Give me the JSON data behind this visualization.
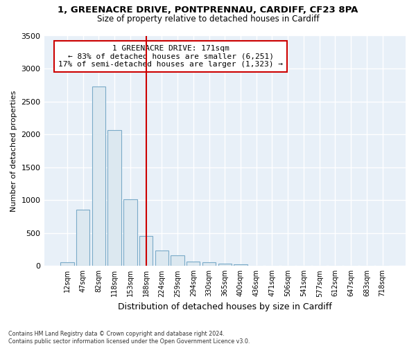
{
  "title1": "1, GREENACRE DRIVE, PONTPRENNAU, CARDIFF, CF23 8PA",
  "title2": "Size of property relative to detached houses in Cardiff",
  "xlabel": "Distribution of detached houses by size in Cardiff",
  "ylabel": "Number of detached properties",
  "bar_labels": [
    "12sqm",
    "47sqm",
    "82sqm",
    "118sqm",
    "153sqm",
    "188sqm",
    "224sqm",
    "259sqm",
    "294sqm",
    "330sqm",
    "365sqm",
    "400sqm",
    "436sqm",
    "471sqm",
    "506sqm",
    "541sqm",
    "577sqm",
    "612sqm",
    "647sqm",
    "683sqm",
    "718sqm"
  ],
  "bar_values": [
    60,
    850,
    2730,
    2060,
    1010,
    460,
    230,
    160,
    70,
    60,
    30,
    20,
    0,
    0,
    0,
    0,
    0,
    0,
    0,
    0,
    0
  ],
  "bar_color": "#dce8f0",
  "bar_edge_color": "#7aaac8",
  "vline_x": 5.0,
  "vline_color": "#cc0000",
  "annotation_text": "1 GREENACRE DRIVE: 171sqm\n← 83% of detached houses are smaller (6,251)\n17% of semi-detached houses are larger (1,323) →",
  "annotation_box_color": "#cc0000",
  "ylim": [
    0,
    3500
  ],
  "yticks": [
    0,
    500,
    1000,
    1500,
    2000,
    2500,
    3000,
    3500
  ],
  "footnote": "Contains HM Land Registry data © Crown copyright and database right 2024.\nContains public sector information licensed under the Open Government Licence v3.0.",
  "bg_color": "#ffffff",
  "plot_bg_color": "#e8f0f8",
  "grid_color": "#ffffff"
}
